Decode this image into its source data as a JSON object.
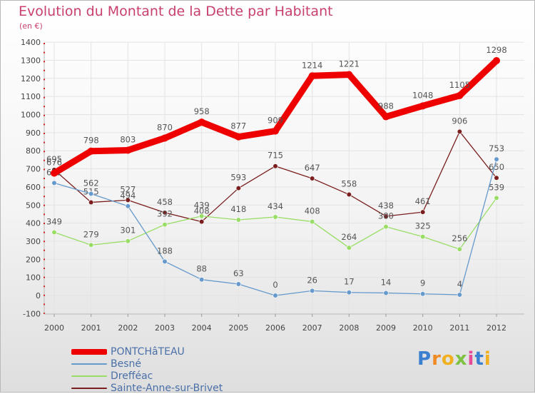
{
  "header": {
    "title": "Evolution du Montant de la Dette par Habitant",
    "unit": "(en €)"
  },
  "chart_data": {
    "type": "line",
    "title": "Evolution du Montant de la Dette par Habitant",
    "ylabel": "(en €)",
    "xlabel": "",
    "ylim": [
      -100,
      1400
    ],
    "yticks": [
      -100,
      0,
      100,
      200,
      300,
      400,
      500,
      600,
      700,
      800,
      900,
      1000,
      1100,
      1200,
      1300,
      1400
    ],
    "categories": [
      "2000",
      "2001",
      "2002",
      "2003",
      "2004",
      "2005",
      "2006",
      "2007",
      "2008",
      "2009",
      "2010",
      "2011",
      "2012"
    ],
    "legend_position": "bottom-left",
    "series": [
      {
        "name": "Sainte-Anne-sur-Brivet",
        "color": "#7a1e1e",
        "values": [
          695,
          515,
          527,
          458,
          408,
          593,
          715,
          647,
          558,
          438,
          461,
          906,
          650
        ]
      },
      {
        "name": "Drefféac",
        "color": "#99dd66",
        "values": [
          349,
          279,
          301,
          392,
          439,
          418,
          434,
          408,
          264,
          380,
          325,
          256,
          539
        ]
      },
      {
        "name": "Besné",
        "color": "#6699cc",
        "values": [
          622,
          562,
          494,
          188,
          88,
          63,
          0,
          26,
          17,
          14,
          9,
          4,
          753
        ]
      },
      {
        "name": "PONTCHâTEAU",
        "color": "#ee0000",
        "values": [
          676,
          798,
          803,
          870,
          958,
          877,
          909,
          1214,
          1221,
          988,
          1048,
          1105,
          1298
        ]
      }
    ]
  },
  "legend": [
    {
      "label": "PONTCHâTEAU",
      "color": "#ee0000"
    },
    {
      "label": "Besné",
      "color": "#6699cc"
    },
    {
      "label": "Drefféac",
      "color": "#99dd66"
    },
    {
      "label": "Sainte-Anne-sur-Brivet",
      "color": "#7a1e1e"
    }
  ],
  "logo": {
    "text": "Proxiti"
  }
}
